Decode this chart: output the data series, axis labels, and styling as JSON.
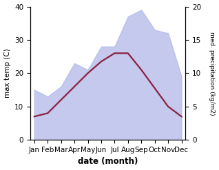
{
  "months": [
    "Jan",
    "Feb",
    "Mar",
    "Apr",
    "May",
    "Jun",
    "Jul",
    "Aug",
    "Sep",
    "Oct",
    "Nov",
    "Dec"
  ],
  "max_temp": [
    7.0,
    8.0,
    12.0,
    16.0,
    20.0,
    23.5,
    26.0,
    26.0,
    21.0,
    15.5,
    10.0,
    7.0
  ],
  "precipitation_kg": [
    7.5,
    6.5,
    8.0,
    11.5,
    10.5,
    14.0,
    14.0,
    18.5,
    19.5,
    16.5,
    16.0,
    9.5
  ],
  "temp_color": "#8b2040",
  "precip_fill_color": "#b0b8e8",
  "precip_fill_alpha": 0.75,
  "xlabel": "date (month)",
  "ylabel_left": "max temp (C)",
  "ylabel_right": "med. precipitation (kg/m2)",
  "ylim_left": [
    0,
    40
  ],
  "ylim_right": [
    0,
    20
  ],
  "yticks_left": [
    0,
    10,
    20,
    30,
    40
  ],
  "yticks_right": [
    0,
    5,
    10,
    15,
    20
  ],
  "background_color": "#ffffff",
  "line_width": 1.6
}
